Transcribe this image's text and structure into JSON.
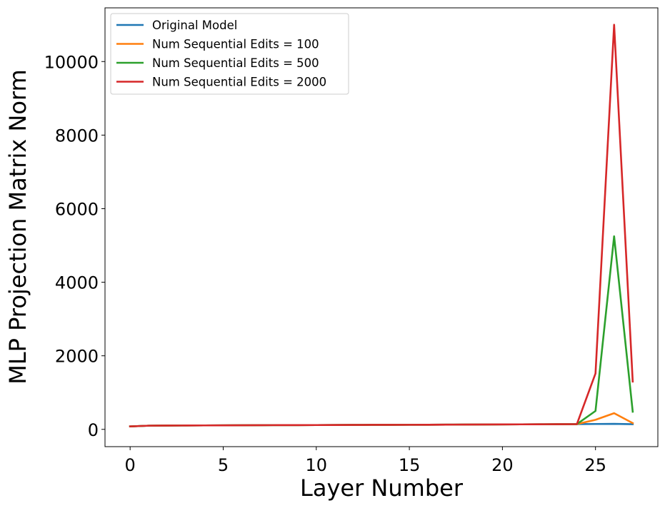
{
  "chart_data": {
    "type": "line",
    "title": "",
    "xlabel": "Layer Number",
    "ylabel": "MLP Projection Matrix Norm",
    "xlim": [
      -1.35,
      28.35
    ],
    "ylim": [
      -470,
      11460
    ],
    "xticks": [
      0,
      5,
      10,
      15,
      20,
      25
    ],
    "yticks": [
      0,
      2000,
      4000,
      6000,
      8000,
      10000
    ],
    "grid": false,
    "legend_position": "upper-left",
    "x": [
      0,
      1,
      2,
      3,
      4,
      5,
      6,
      7,
      8,
      9,
      10,
      11,
      12,
      13,
      14,
      15,
      16,
      17,
      18,
      19,
      20,
      21,
      22,
      23,
      24,
      25,
      26,
      27
    ],
    "series": [
      {
        "name": "Original Model",
        "color": "#1f77b4",
        "values": [
          80,
          100,
          103,
          105,
          107,
          109,
          111,
          113,
          115,
          116,
          117,
          118,
          120,
          122,
          123,
          124,
          126,
          128,
          130,
          132,
          134,
          136,
          138,
          140,
          142,
          146,
          150,
          140
        ]
      },
      {
        "name": "Num Sequential Edits = 100",
        "color": "#ff7f0e",
        "values": [
          80,
          100,
          103,
          105,
          107,
          109,
          111,
          113,
          115,
          116,
          117,
          118,
          120,
          122,
          123,
          124,
          126,
          128,
          130,
          132,
          134,
          136,
          138,
          140,
          142,
          260,
          440,
          170
        ]
      },
      {
        "name": "Num Sequential Edits = 500",
        "color": "#2ca02c",
        "values": [
          80,
          100,
          103,
          105,
          107,
          109,
          111,
          113,
          115,
          116,
          117,
          118,
          120,
          122,
          123,
          124,
          126,
          128,
          130,
          132,
          134,
          136,
          138,
          140,
          142,
          500,
          5250,
          480
        ]
      },
      {
        "name": "Num Sequential Edits = 2000",
        "color": "#d62728",
        "values": [
          80,
          100,
          103,
          105,
          107,
          109,
          111,
          113,
          115,
          116,
          117,
          118,
          120,
          122,
          123,
          124,
          126,
          128,
          130,
          132,
          134,
          136,
          138,
          140,
          142,
          1520,
          11000,
          1300
        ]
      }
    ]
  }
}
